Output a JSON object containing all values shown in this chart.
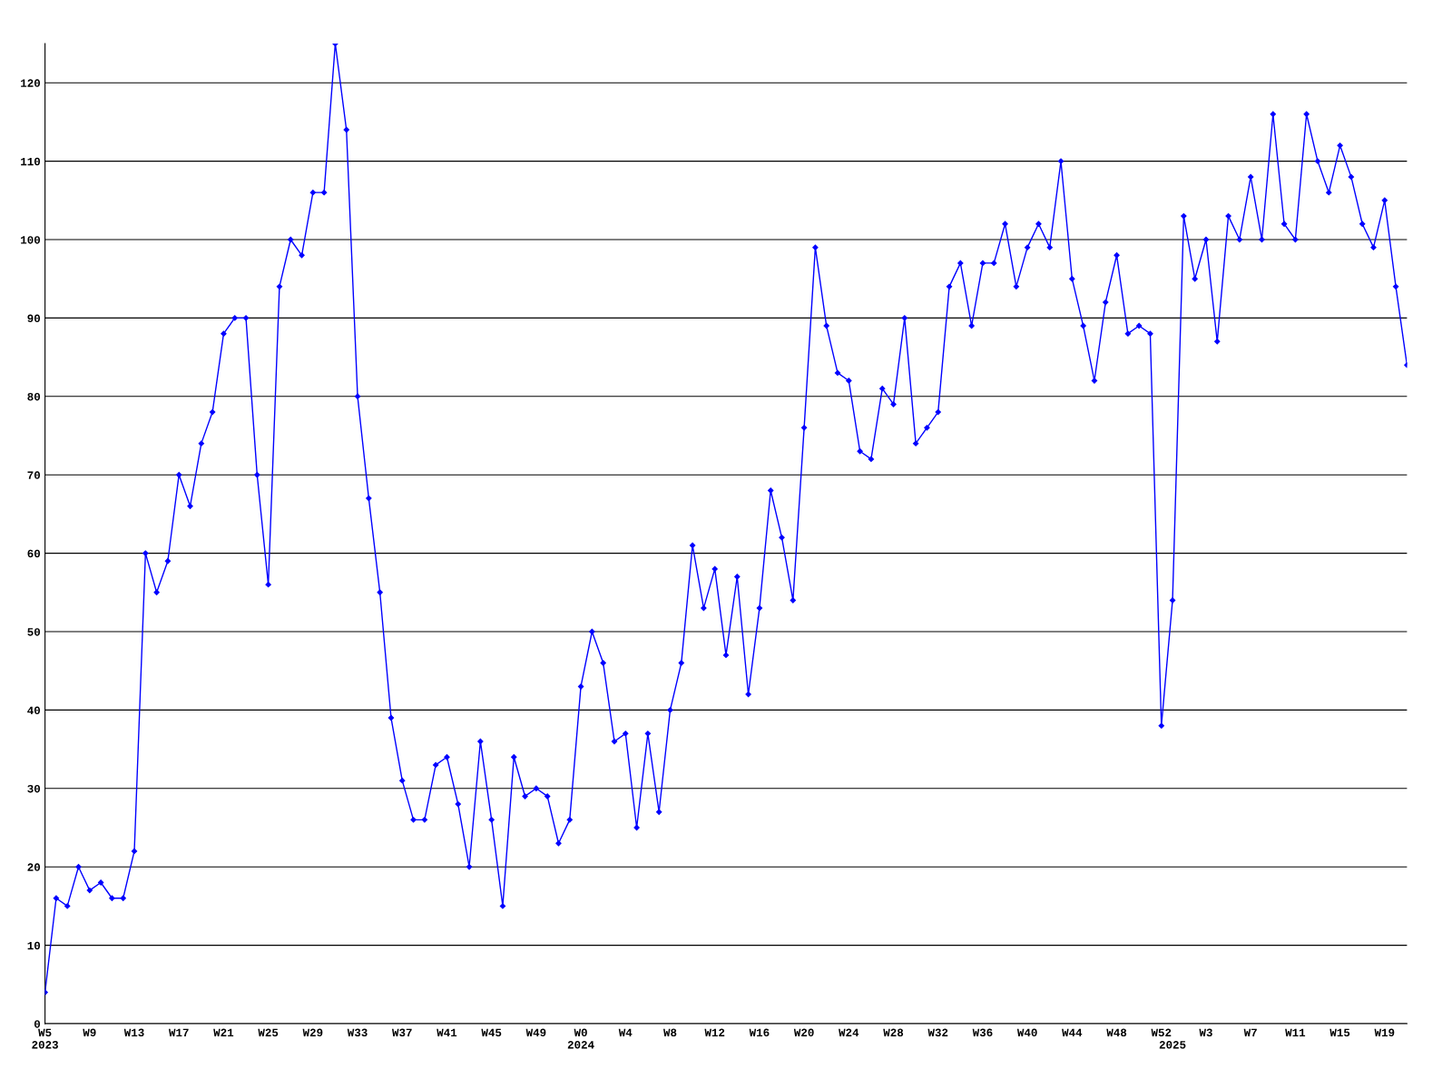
{
  "chart_data": {
    "type": "line",
    "categories": [
      "W5\n2023",
      null,
      null,
      null,
      "W9",
      null,
      null,
      null,
      "W13",
      null,
      null,
      null,
      "W17",
      null,
      null,
      null,
      "W21",
      null,
      null,
      null,
      "W25",
      null,
      null,
      null,
      "W29",
      null,
      null,
      null,
      "W33",
      null,
      null,
      null,
      "W37",
      null,
      null,
      null,
      "W41",
      null,
      null,
      null,
      "W45",
      null,
      null,
      null,
      "W49",
      null,
      null,
      null,
      "W0\n2024",
      null,
      null,
      null,
      "W4",
      null,
      null,
      null,
      "W8",
      null,
      null,
      null,
      "W12",
      null,
      null,
      null,
      "W16",
      null,
      null,
      null,
      "W20",
      null,
      null,
      null,
      "W24",
      null,
      null,
      null,
      "W28",
      null,
      null,
      null,
      "W32",
      null,
      null,
      null,
      "W36",
      null,
      null,
      null,
      "W40",
      null,
      null,
      null,
      "W44",
      null,
      null,
      null,
      "W48",
      null,
      null,
      null,
      "W52",
      "\n2025",
      null,
      null,
      "W3",
      null,
      null,
      null,
      "W7",
      null,
      null,
      null,
      "W11",
      null,
      null,
      null,
      "W15",
      null,
      null,
      null,
      "W19",
      null,
      null
    ],
    "series": [
      {
        "color": "#0000ff",
        "values": [
          4,
          16,
          15,
          20,
          17,
          18,
          16,
          16,
          22,
          60,
          55,
          59,
          70,
          66,
          74,
          78,
          88,
          90,
          90,
          70,
          56,
          94,
          100,
          98,
          106,
          106,
          125,
          114,
          80,
          67,
          55,
          39,
          31,
          26,
          26,
          33,
          34,
          28,
          20,
          36,
          26,
          15,
          34,
          29,
          30,
          29,
          23,
          26,
          43,
          50,
          46,
          36,
          37,
          25,
          37,
          27,
          40,
          46,
          61,
          53,
          58,
          47,
          57,
          42,
          53,
          68,
          62,
          54,
          76,
          99,
          89,
          83,
          82,
          73,
          72,
          81,
          79,
          90,
          74,
          76,
          78,
          94,
          97,
          89,
          97,
          97,
          102,
          94,
          99,
          102,
          99,
          110,
          95,
          89,
          82,
          92,
          98,
          88,
          89,
          88,
          38,
          54,
          103,
          95,
          100,
          87,
          103,
          100,
          108,
          100,
          116,
          102,
          100,
          116,
          110,
          106,
          112,
          108,
          102,
          99,
          105,
          94,
          84
        ]
      }
    ],
    "ylim": [
      0,
      125
    ],
    "yticks": [
      0,
      10,
      20,
      30,
      40,
      50,
      60,
      70,
      80,
      90,
      100,
      110,
      120
    ],
    "grid": "y",
    "marker": "diamond",
    "line_style": "solid",
    "legend": false
  }
}
